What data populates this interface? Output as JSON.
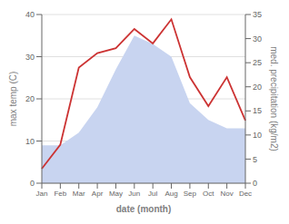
{
  "chart_data": {
    "type": "line",
    "categories": [
      "Jan",
      "Feb",
      "Mar",
      "Apr",
      "May",
      "Jun",
      "Jul",
      "Aug",
      "Sep",
      "Oct",
      "Nov",
      "Dec"
    ],
    "xlabel": "date (month)",
    "ylabel": "max temp (C)",
    "y2label": "med. precipitation (kg/m2)",
    "series": [
      {
        "type": "area",
        "color": "#c8d4f0",
        "values": [
          9,
          9,
          12,
          18,
          27,
          35,
          33,
          30,
          19,
          15,
          13,
          13
        ]
      },
      {
        "type": "line",
        "color": "#cc3333",
        "axis": "y2",
        "values": [
          3,
          8,
          24,
          27,
          28,
          32,
          29,
          34,
          22,
          16,
          22,
          13
        ]
      }
    ],
    "ylim": [
      0,
      40
    ],
    "yticks": [
      0,
      10,
      20,
      30,
      40
    ],
    "y2lim": [
      0,
      35
    ],
    "y2ticks": [
      0,
      5,
      10,
      15,
      20,
      25,
      30,
      35
    ],
    "grid": true
  }
}
